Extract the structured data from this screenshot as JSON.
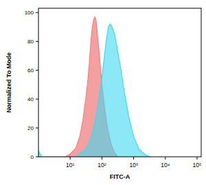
{
  "chart_data": {
    "type": "area",
    "x_label": "FITC-A",
    "y_label": "Normalized To Mode",
    "log": "x",
    "xlim": [
      1,
      135000
    ],
    "xticks": [
      {
        "value": 10,
        "label": "10¹"
      },
      {
        "value": 100,
        "label": "10²"
      },
      {
        "value": 1000,
        "label": "10³"
      },
      {
        "value": 10000,
        "label": "10⁴"
      },
      {
        "value": 100000,
        "label": "10⁵"
      }
    ],
    "ylim": [
      0,
      103
    ],
    "yticks": [
      0,
      20,
      40,
      60,
      80,
      100
    ],
    "grid": false,
    "series": [
      {
        "color": "#f08080",
        "x": [
          7,
          10,
          15,
          20,
          25,
          30,
          35,
          40,
          45,
          50,
          55,
          60,
          65,
          70,
          80,
          90,
          100,
          120,
          150,
          200,
          250,
          320
        ],
        "values": [
          0,
          2,
          6,
          14,
          25,
          38,
          50,
          65,
          80,
          90,
          95,
          97,
          95,
          88,
          75,
          62,
          50,
          35,
          20,
          8,
          3,
          0
        ]
      },
      {
        "color": "#40d8f0",
        "x": [
          1,
          1.3,
          15,
          20,
          30,
          40,
          50,
          60,
          70,
          80,
          100,
          120,
          140,
          160,
          180,
          200,
          250,
          300,
          400,
          500,
          700,
          1000,
          1500,
          2500,
          3500
        ],
        "values": [
          4,
          0,
          0,
          2,
          5,
          10,
          17,
          24,
          32,
          40,
          55,
          70,
          82,
          90,
          92,
          91,
          85,
          76,
          60,
          46,
          28,
          14,
          5,
          1,
          0
        ]
      }
    ]
  }
}
